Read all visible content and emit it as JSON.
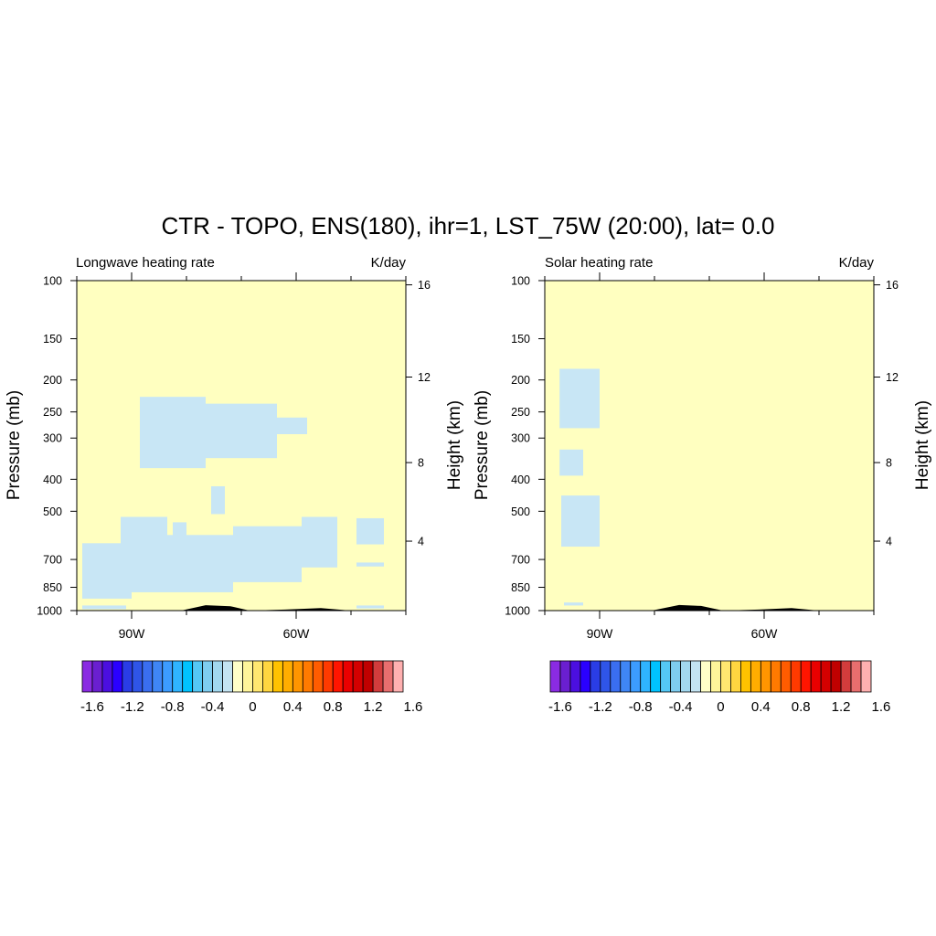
{
  "title": "CTR - TOPO, ENS(180), ihr=1, LST_75W (20:00), lat=  0.0",
  "colors": {
    "background_field": "#ffffc0",
    "negative_shade": "#c8e6f5",
    "topography": "#000000"
  },
  "colorbar": {
    "colors": [
      "#8a2be2",
      "#6a1fd0",
      "#4b0fe0",
      "#2a00ff",
      "#2a3de6",
      "#2f55e8",
      "#3a6ef0",
      "#3f86f5",
      "#3c9cff",
      "#2fb4ff",
      "#00c3ff",
      "#54c8f5",
      "#7ecdf0",
      "#a2d8ef",
      "#c4e4f2",
      "#ffffc8",
      "#fff59a",
      "#ffe770",
      "#ffd640",
      "#ffc200",
      "#ffad00",
      "#ff9500",
      "#ff7a00",
      "#ff5c00",
      "#ff3a00",
      "#ff1500",
      "#ea0000",
      "#d40000",
      "#c00000",
      "#d23c3c",
      "#e86e6e",
      "#ffb0b0"
    ],
    "labels": [
      "-1.6",
      "-1.2",
      "-0.8",
      "-0.4",
      "0",
      "0.4",
      "0.8",
      "1.2",
      "1.6"
    ]
  },
  "chart_data": [
    {
      "type": "heatmap",
      "title": "Longwave heating rate",
      "units": "K/day",
      "ylabel": "Pressure (mb)",
      "ylabel_right": "Height (km)",
      "xlim": [
        -100,
        -40
      ],
      "ylim": [
        1000,
        100
      ],
      "y_log_scale": true,
      "x_ticks": [
        {
          "value": -90,
          "label": "90W"
        },
        {
          "value": -60,
          "label": "60W"
        }
      ],
      "y_ticks": [
        100,
        150,
        200,
        250,
        300,
        400,
        500,
        700,
        850,
        1000
      ],
      "height_ticks": [
        {
          "value": 16,
          "pressure": 103
        },
        {
          "value": 12,
          "pressure": 196
        },
        {
          "value": 8,
          "pressure": 356
        },
        {
          "value": 4,
          "pressure": 616
        }
      ],
      "negative_regions": [
        {
          "x": [
            -88.5,
            -76.5
          ],
          "p": [
            370,
            225
          ]
        },
        {
          "x": [
            -77,
            -63.5
          ],
          "p": [
            345,
            236
          ]
        },
        {
          "x": [
            -63.5,
            -58
          ],
          "p": [
            292,
            260
          ]
        },
        {
          "x": [
            -82.5,
            -80
          ],
          "p": [
            720,
            540
          ]
        },
        {
          "x": [
            -92,
            -83.5
          ],
          "p": [
            880,
            520
          ]
        },
        {
          "x": [
            -99,
            -90
          ],
          "p": [
            920,
            625
          ]
        },
        {
          "x": [
            -83.5,
            -71.5
          ],
          "p": [
            880,
            590
          ]
        },
        {
          "x": [
            -71.5,
            -59
          ],
          "p": [
            820,
            555
          ]
        },
        {
          "x": [
            -59,
            -52.5
          ],
          "p": [
            740,
            520
          ]
        },
        {
          "x": [
            -75.5,
            -73
          ],
          "p": [
            510,
            420
          ]
        },
        {
          "x": [
            -49,
            -44
          ],
          "p": [
            630,
            525
          ]
        },
        {
          "x": [
            -49,
            -44
          ],
          "p": [
            735,
            715
          ]
        },
        {
          "x": [
            -99,
            -91
          ],
          "p": [
            990,
            965
          ]
        },
        {
          "x": [
            -49,
            -44
          ],
          "p": [
            985,
            965
          ]
        }
      ],
      "topography": [
        [
          -90,
          1000
        ],
        [
          -81,
          1000
        ],
        [
          -76.5,
          963
        ],
        [
          -72,
          970
        ],
        [
          -68.5,
          1000
        ],
        [
          -62,
          993
        ],
        [
          -55.5,
          983
        ],
        [
          -50,
          1000
        ],
        [
          -40,
          1000
        ]
      ]
    },
    {
      "type": "heatmap",
      "title": "Solar heating rate",
      "units": "K/day",
      "ylabel": "Pressure (mb)",
      "ylabel_right": "Height (km)",
      "xlim": [
        -100,
        -40
      ],
      "ylim": [
        1000,
        100
      ],
      "y_log_scale": true,
      "x_ticks": [
        {
          "value": -90,
          "label": "90W"
        },
        {
          "value": -60,
          "label": "60W"
        }
      ],
      "y_ticks": [
        100,
        150,
        200,
        250,
        300,
        400,
        500,
        700,
        850,
        1000
      ],
      "height_ticks": [
        {
          "value": 16,
          "pressure": 103
        },
        {
          "value": 12,
          "pressure": 196
        },
        {
          "value": 8,
          "pressure": 356
        },
        {
          "value": 4,
          "pressure": 616
        }
      ],
      "negative_regions": [
        {
          "x": [
            -97.3,
            -90
          ],
          "p": [
            280,
            185
          ]
        },
        {
          "x": [
            -97.3,
            -93
          ],
          "p": [
            390,
            325
          ]
        },
        {
          "x": [
            -97,
            -90
          ],
          "p": [
            640,
            448
          ]
        },
        {
          "x": [
            -96.5,
            -93
          ],
          "p": [
            965,
            945
          ]
        }
      ],
      "topography": [
        [
          -90,
          1000
        ],
        [
          -80.5,
          1000
        ],
        [
          -75.5,
          962
        ],
        [
          -71.5,
          968
        ],
        [
          -67.5,
          1000
        ],
        [
          -61,
          993
        ],
        [
          -55,
          983
        ],
        [
          -50,
          1000
        ],
        [
          -40,
          1000
        ]
      ]
    }
  ]
}
